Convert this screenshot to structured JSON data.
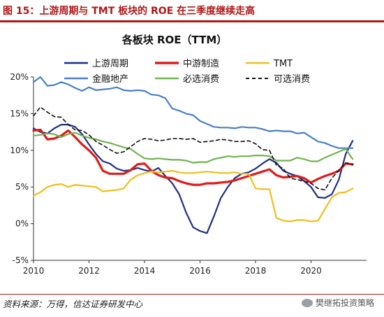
{
  "figure_title": "图 15：上游周期与 TMT 板块的 ROE 在三季度继续走高",
  "source_note": "资料来源：万得，信达证券研发中心",
  "watermark": "樊继拓投资策略",
  "chart_data": {
    "type": "line",
    "title": "各板块 ROE（TTM）",
    "xlabel": "",
    "ylabel": "",
    "xlim": [
      2010,
      2022
    ],
    "ylim": [
      -5,
      20
    ],
    "x_ticks": [
      "2010",
      "2012",
      "2014",
      "2016",
      "2018",
      "2020"
    ],
    "x_tick_values": [
      2010,
      2012,
      2014,
      2016,
      2018,
      2020
    ],
    "y_ticks": [
      "-5%",
      "0%",
      "5%",
      "10%",
      "15%",
      "20%"
    ],
    "y_tick_values": [
      -5,
      0,
      5,
      10,
      15,
      20
    ],
    "grid": false,
    "legend_position": "top",
    "series": [
      {
        "name": "上游周期",
        "color": "#1f2f86",
        "width": 2.2,
        "dash": "",
        "x": [
          2010,
          2010.25,
          2010.5,
          2010.75,
          2011,
          2011.25,
          2011.5,
          2011.75,
          2012,
          2012.25,
          2012.5,
          2012.75,
          2013,
          2013.25,
          2013.5,
          2013.75,
          2014,
          2014.25,
          2014.5,
          2014.75,
          2015,
          2015.25,
          2015.5,
          2015.75,
          2016,
          2016.25,
          2016.5,
          2016.75,
          2017,
          2017.25,
          2017.5,
          2017.75,
          2018,
          2018.25,
          2018.5,
          2018.75,
          2019,
          2019.25,
          2019.5,
          2019.75,
          2020,
          2020.25,
          2020.5,
          2020.75,
          2021,
          2021.25,
          2021.5
        ],
        "y": [
          13,
          12.5,
          12.3,
          13,
          13.5,
          13.5,
          13.2,
          12.2,
          10.8,
          9.5,
          8.5,
          8.2,
          7.5,
          7.2,
          7.3,
          7.6,
          7.3,
          7.1,
          7.6,
          6.5,
          5.5,
          4,
          1.5,
          -0.5,
          -1,
          -1.3,
          1,
          3.5,
          5,
          6.2,
          6.8,
          7,
          7.5,
          8.2,
          8.8,
          8.3,
          7.2,
          6.8,
          6.5,
          5.8,
          5,
          3.6,
          3.5,
          4,
          6,
          9.5,
          11.3
        ]
      },
      {
        "name": "中游制造",
        "color": "#e01b1b",
        "width": 3.2,
        "dash": "",
        "x": [
          2010,
          2010.25,
          2010.5,
          2010.75,
          2011,
          2011.25,
          2011.5,
          2011.75,
          2012,
          2012.25,
          2012.5,
          2012.75,
          2013,
          2013.25,
          2013.5,
          2013.75,
          2014,
          2014.25,
          2014.5,
          2014.75,
          2015,
          2015.25,
          2015.5,
          2015.75,
          2016,
          2016.25,
          2016.5,
          2016.75,
          2017,
          2017.25,
          2017.5,
          2017.75,
          2018,
          2018.25,
          2018.5,
          2018.75,
          2019,
          2019.25,
          2019.5,
          2019.75,
          2020,
          2020.25,
          2020.5,
          2020.75,
          2021,
          2021.25,
          2021.5
        ],
        "y": [
          12.7,
          12.8,
          11.5,
          11.6,
          12,
          12.7,
          11.8,
          10.8,
          10,
          9,
          7.2,
          6.8,
          6.8,
          6.8,
          7.3,
          8.1,
          8.2,
          7.2,
          6.6,
          6.3,
          6.2,
          5.8,
          5.5,
          5.3,
          5.3,
          5.5,
          5.5,
          5.6,
          5.7,
          5.9,
          6.2,
          6.5,
          6.8,
          7.1,
          7.4,
          6.6,
          6.3,
          6.4,
          6.5,
          6.2,
          5.6,
          6.1,
          6.5,
          6.8,
          7.2,
          8.2,
          8.1
        ]
      },
      {
        "name": "TMT",
        "color": "#f2be1a",
        "width": 2.2,
        "dash": "",
        "x": [
          2010,
          2010.25,
          2010.5,
          2010.75,
          2011,
          2011.25,
          2011.5,
          2011.75,
          2012,
          2012.25,
          2012.5,
          2012.75,
          2013,
          2013.25,
          2013.5,
          2013.75,
          2014,
          2014.25,
          2014.5,
          2014.75,
          2015,
          2015.25,
          2015.5,
          2015.75,
          2016,
          2016.25,
          2016.5,
          2016.75,
          2017,
          2017.25,
          2017.5,
          2017.75,
          2018,
          2018.25,
          2018.5,
          2018.75,
          2019,
          2019.25,
          2019.5,
          2019.75,
          2020,
          2020.25,
          2020.5,
          2020.75,
          2021,
          2021.25,
          2021.5
        ],
        "y": [
          3.8,
          4.3,
          5,
          5.3,
          5.4,
          5,
          5.3,
          5.2,
          5.1,
          5,
          4.4,
          4.5,
          4.6,
          4.8,
          6,
          6.6,
          6.9,
          7.1,
          7,
          7.1,
          7.2,
          7,
          6.9,
          6.9,
          7,
          7.1,
          7,
          6.9,
          6.9,
          7,
          6.8,
          6.8,
          4.8,
          4.7,
          4.7,
          0.8,
          0.4,
          0.3,
          0.5,
          0.5,
          0.3,
          0.4,
          2,
          3.6,
          4.2,
          4.3,
          4.8
        ]
      },
      {
        "name": "金融地产",
        "color": "#4a7fc8",
        "width": 2.2,
        "dash": "",
        "x": [
          2010,
          2010.25,
          2010.5,
          2010.75,
          2011,
          2011.25,
          2011.5,
          2011.75,
          2012,
          2012.25,
          2012.5,
          2012.75,
          2013,
          2013.25,
          2013.5,
          2013.75,
          2014,
          2014.25,
          2014.5,
          2014.75,
          2015,
          2015.25,
          2015.5,
          2015.75,
          2016,
          2016.25,
          2016.5,
          2016.75,
          2017,
          2017.25,
          2017.5,
          2017.75,
          2018,
          2018.25,
          2018.5,
          2018.75,
          2019,
          2019.25,
          2019.5,
          2019.75,
          2020,
          2020.25,
          2020.5,
          2020.75,
          2021,
          2021.25,
          2021.5
        ],
        "y": [
          19.3,
          20,
          18.8,
          18.9,
          19.3,
          19,
          18.5,
          18.1,
          18.6,
          18.2,
          18.3,
          18.4,
          18.6,
          18.2,
          18.1,
          18.2,
          18.1,
          17.6,
          17.5,
          17.1,
          15.7,
          15.4,
          15,
          14.8,
          14,
          13.6,
          13.2,
          13.1,
          13.1,
          13,
          13.2,
          13.1,
          13.1,
          12.9,
          12.6,
          12.7,
          12.6,
          12.6,
          12.3,
          12.4,
          11.8,
          11.2,
          11,
          10.6,
          10.3,
          10.3,
          10.3
        ]
      },
      {
        "name": "必选消费",
        "color": "#73b24f",
        "width": 2.2,
        "dash": "",
        "x": [
          2010,
          2010.25,
          2010.5,
          2010.75,
          2011,
          2011.25,
          2011.5,
          2011.75,
          2012,
          2012.25,
          2012.5,
          2012.75,
          2013,
          2013.25,
          2013.5,
          2013.75,
          2014,
          2014.25,
          2014.5,
          2014.75,
          2015,
          2015.25,
          2015.5,
          2015.75,
          2016,
          2016.25,
          2016.5,
          2016.75,
          2017,
          2017.25,
          2017.5,
          2017.75,
          2018,
          2018.25,
          2018.5,
          2018.75,
          2019,
          2019.25,
          2019.5,
          2019.75,
          2020,
          2020.25,
          2020.5,
          2020.75,
          2021,
          2021.25,
          2021.5
        ],
        "y": [
          12,
          12.1,
          12.3,
          12.2,
          11.8,
          12.2,
          12.4,
          12,
          11.7,
          11.5,
          11.2,
          11,
          10.7,
          10.4,
          10.2,
          9.5,
          8.9,
          8.8,
          8.9,
          8.8,
          8.7,
          8.7,
          8.6,
          8.3,
          8.4,
          8.4,
          8.8,
          9,
          9.2,
          9.1,
          9.2,
          9.2,
          9.3,
          9.3,
          9.2,
          8.6,
          8.6,
          8.6,
          9,
          8.8,
          8.5,
          8.5,
          9,
          9.4,
          9.8,
          10.2,
          8.8
        ]
      },
      {
        "name": "可选消费",
        "color": "#111111",
        "width": 1.6,
        "dash": "5,4",
        "x": [
          2010,
          2010.25,
          2010.5,
          2010.75,
          2011,
          2011.25,
          2011.5,
          2011.75,
          2012,
          2012.25,
          2012.5,
          2012.75,
          2013,
          2013.25,
          2013.5,
          2013.75,
          2014,
          2014.25,
          2014.5,
          2014.75,
          2015,
          2015.25,
          2015.5,
          2015.75,
          2016,
          2016.25,
          2016.5,
          2016.75,
          2017,
          2017.25,
          2017.5,
          2017.75,
          2018,
          2018.25,
          2018.5,
          2018.75,
          2019,
          2019.25,
          2019.5,
          2019.75,
          2020,
          2020.25,
          2020.5,
          2020.75,
          2021,
          2021.25,
          2021.5
        ],
        "y": [
          14.7,
          15.9,
          15.2,
          14.6,
          14.5,
          13.5,
          12.8,
          12.7,
          12.1,
          11.2,
          10.7,
          10.1,
          9.6,
          9.8,
          10.5,
          11.2,
          11.6,
          11.5,
          11.3,
          11.4,
          11.6,
          11.6,
          11.5,
          11.6,
          11.1,
          11.2,
          11.3,
          11.5,
          11.4,
          11.2,
          11.2,
          11.3,
          10.9,
          10.1,
          10,
          8,
          7.5,
          6.2,
          6,
          5.8,
          5.5,
          4.8,
          4.6,
          6.2,
          7.3,
          8.3,
          8
        ]
      }
    ]
  }
}
